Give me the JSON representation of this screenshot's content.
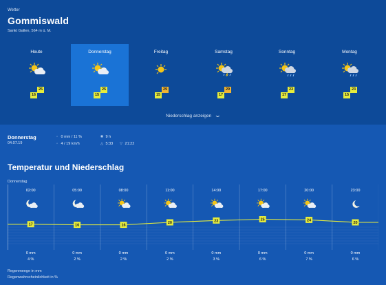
{
  "header": {
    "brand": "Wetter",
    "location": "Gommiswald",
    "sublocation": "Sankt Gallen, 564 m ü. M."
  },
  "days": [
    {
      "name": "Heute",
      "icon": "partly-cloudy-icon",
      "min": "16",
      "max": "25",
      "hot": false
    },
    {
      "name": "Donnerstag",
      "icon": "partly-cloudy-icon",
      "min": "15",
      "max": "25",
      "hot": false,
      "selected": true
    },
    {
      "name": "Freitag",
      "icon": "sunny-icon",
      "min": "15",
      "max": "29",
      "hot": true
    },
    {
      "name": "Samstag",
      "icon": "thunder-rain-icon",
      "min": "17",
      "max": "29",
      "hot": true
    },
    {
      "name": "Sonntag",
      "icon": "cloud-rain-icon",
      "min": "17",
      "max": "23",
      "hot": false
    },
    {
      "name": "Montag",
      "icon": "cloud-rain-icon",
      "min": "15",
      "max": "23",
      "hot": false
    }
  ],
  "precip_toggle": "Niederschlag anzeigen",
  "detail": {
    "day": "Donnerstag",
    "date": "04.07.19",
    "precip": "0 mm / 11 %",
    "wind": "4 / 19 km/h",
    "sun_hours": "9 h",
    "sunrise": "5:33",
    "sunset": "21:22"
  },
  "section_title": "Temperatur und Niederschlag",
  "chart_day": "Donnerstag",
  "legend": {
    "line1": "Regenmenge in mm",
    "line2": "Regenwahrscheinlichkeit in %"
  },
  "colors": {
    "background": "#1558b3",
    "header_bg": "#0d4a99",
    "selected_day": "#1a73d6",
    "temp_box": "#e6ec3c",
    "temp_box_hot": "#f0b533",
    "temp_line": "#e6ec3c"
  },
  "chart_data": {
    "type": "line",
    "x": [
      "02:00",
      "05:00",
      "08:00",
      "11:00",
      "14:00",
      "17:00",
      "20:00",
      "23:00"
    ],
    "icons": [
      "moon-cloud-icon",
      "moon-cloud-icon",
      "partly-cloudy-icon",
      "partly-cloudy-icon",
      "partly-cloudy-icon",
      "partly-cloudy-icon",
      "partly-cloudy-icon",
      "moon-icon"
    ],
    "series": [
      {
        "values": [
          17,
          16,
          16,
          20,
          23,
          25,
          24,
          20
        ]
      }
    ],
    "precip_mm": [
      "0 mm",
      "0 mm",
      "0 mm",
      "0 mm",
      "0 mm",
      "0 mm",
      "0 mm",
      "0 mm"
    ],
    "precip_prob": [
      "4 %",
      "2 %",
      "2 %",
      "2 %",
      "3 %",
      "6 %",
      "7 %",
      "6 %"
    ]
  }
}
